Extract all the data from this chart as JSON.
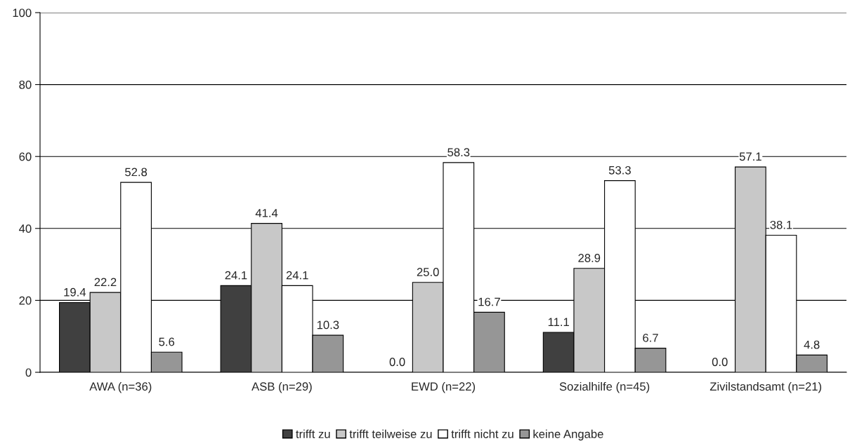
{
  "chart_data": {
    "type": "bar",
    "categories": [
      "AWA (n=36)",
      "ASB (n=29)",
      "EWD (n=22)",
      "Sozialhilfe (n=45)",
      "Zivilstandsamt (n=21)"
    ],
    "series": [
      {
        "name": "trifft zu",
        "color": "#404040",
        "values": [
          19.4,
          24.1,
          0.0,
          11.1,
          0.0
        ],
        "value_labels": [
          "19.4",
          "24.1",
          "0.0",
          "11.1",
          "0.0"
        ]
      },
      {
        "name": "trifft teilweise zu",
        "color": "#c8c8c8",
        "values": [
          22.2,
          41.4,
          25.0,
          28.9,
          57.1
        ],
        "value_labels": [
          "22.2",
          "41.4",
          "25.0",
          "28.9",
          "57.1"
        ]
      },
      {
        "name": "trifft nicht zu",
        "color": "#ffffff",
        "values": [
          52.8,
          24.1,
          58.3,
          53.3,
          38.1
        ],
        "value_labels": [
          "52.8",
          "24.1",
          "58.3",
          "53.3",
          "38.1"
        ]
      },
      {
        "name": "keine Angabe",
        "color": "#969696",
        "values": [
          5.6,
          10.3,
          16.7,
          6.7,
          4.8
        ],
        "value_labels": [
          "5.6",
          "10.3",
          "16.7",
          "6.7",
          "4.8"
        ]
      }
    ],
    "ylim": [
      0,
      100
    ],
    "yticks": [
      0,
      20,
      40,
      60,
      80,
      100
    ],
    "grid": "y",
    "legend": "bottom"
  }
}
